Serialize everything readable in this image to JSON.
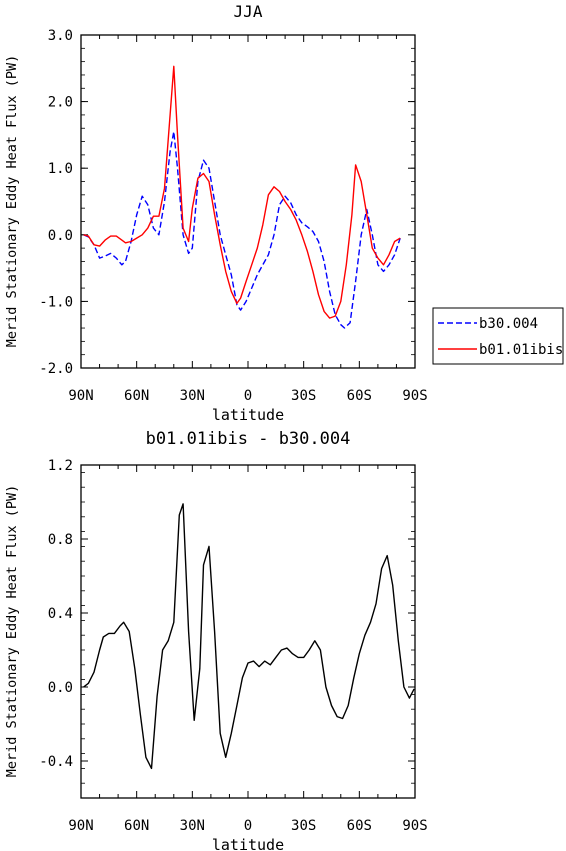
{
  "chart_data": [
    {
      "type": "line",
      "title": "JJA",
      "xlabel": "latitude",
      "ylabel": "Merid Stationary Eddy Heat Flux (PW)",
      "xlim": [
        90,
        -90
      ],
      "ylim": [
        -2.0,
        3.0
      ],
      "xticks": [
        90,
        60,
        30,
        0,
        -30,
        -60,
        -90
      ],
      "xticklabels": [
        "90N",
        "60N",
        "30N",
        "0",
        "30S",
        "60S",
        "90S"
      ],
      "yticks": [
        -2.0,
        -1.0,
        0.0,
        1.0,
        2.0,
        3.0
      ],
      "yticklabels": [
        "-2.0",
        "-1.0",
        "0.0",
        "1.0",
        "2.0",
        "3.0"
      ],
      "legend_position": "right",
      "series": [
        {
          "name": "b30.004",
          "color": "#0000ff",
          "dash": "dashed",
          "points": [
            [
              88.6,
              0.0
            ],
            [
              86,
              -0.03
            ],
            [
              83,
              -0.15
            ],
            [
              80,
              -0.35
            ],
            [
              77,
              -0.32
            ],
            [
              74,
              -0.28
            ],
            [
              71,
              -0.35
            ],
            [
              68,
              -0.45
            ],
            [
              66,
              -0.4
            ],
            [
              63,
              -0.1
            ],
            [
              60,
              0.3
            ],
            [
              57,
              0.58
            ],
            [
              54,
              0.45
            ],
            [
              51,
              0.1
            ],
            [
              48,
              0.0
            ],
            [
              45,
              0.5
            ],
            [
              42,
              1.25
            ],
            [
              40,
              1.55
            ],
            [
              38,
              1.0
            ],
            [
              35,
              0.0
            ],
            [
              32,
              -0.28
            ],
            [
              30,
              -0.2
            ],
            [
              27,
              0.8
            ],
            [
              24,
              1.12
            ],
            [
              21,
              1.0
            ],
            [
              18,
              0.5
            ],
            [
              15,
              0.0
            ],
            [
              12,
              -0.3
            ],
            [
              9,
              -0.6
            ],
            [
              6,
              -1.05
            ],
            [
              4,
              -1.13
            ],
            [
              1,
              -1.0
            ],
            [
              -2,
              -0.8
            ],
            [
              -5,
              -0.6
            ],
            [
              -8,
              -0.45
            ],
            [
              -11,
              -0.3
            ],
            [
              -14,
              0.0
            ],
            [
              -17,
              0.45
            ],
            [
              -20,
              0.58
            ],
            [
              -23,
              0.48
            ],
            [
              -26,
              0.3
            ],
            [
              -29,
              0.18
            ],
            [
              -32,
              0.12
            ],
            [
              -35,
              0.05
            ],
            [
              -38,
              -0.1
            ],
            [
              -41,
              -0.4
            ],
            [
              -44,
              -0.85
            ],
            [
              -47,
              -1.2
            ],
            [
              -50,
              -1.35
            ],
            [
              -52,
              -1.4
            ],
            [
              -55,
              -1.32
            ],
            [
              -58,
              -0.7
            ],
            [
              -61,
              0.0
            ],
            [
              -64,
              0.38
            ],
            [
              -67,
              0.0
            ],
            [
              -70,
              -0.45
            ],
            [
              -73,
              -0.55
            ],
            [
              -76,
              -0.45
            ],
            [
              -79,
              -0.3
            ],
            [
              -82,
              -0.05
            ]
          ]
        },
        {
          "name": "b01.01ibis",
          "color": "#ff0000",
          "dash": "solid",
          "points": [
            [
              88.6,
              0.0
            ],
            [
              86,
              -0.02
            ],
            [
              83,
              -0.15
            ],
            [
              80,
              -0.17
            ],
            [
              77,
              -0.08
            ],
            [
              74,
              -0.02
            ],
            [
              71,
              -0.02
            ],
            [
              68,
              -0.08
            ],
            [
              66,
              -0.12
            ],
            [
              63,
              -0.1
            ],
            [
              60,
              -0.05
            ],
            [
              57,
              0.0
            ],
            [
              54,
              0.1
            ],
            [
              51,
              0.28
            ],
            [
              48,
              0.28
            ],
            [
              45,
              0.7
            ],
            [
              42,
              1.8
            ],
            [
              40,
              2.53
            ],
            [
              38,
              1.5
            ],
            [
              35,
              0.1
            ],
            [
              32,
              -0.1
            ],
            [
              30,
              0.4
            ],
            [
              27,
              0.85
            ],
            [
              24,
              0.92
            ],
            [
              21,
              0.8
            ],
            [
              18,
              0.3
            ],
            [
              15,
              -0.15
            ],
            [
              12,
              -0.55
            ],
            [
              9,
              -0.85
            ],
            [
              6,
              -1.03
            ],
            [
              4,
              -0.95
            ],
            [
              1,
              -0.7
            ],
            [
              -2,
              -0.45
            ],
            [
              -5,
              -0.2
            ],
            [
              -8,
              0.15
            ],
            [
              -11,
              0.6
            ],
            [
              -14,
              0.72
            ],
            [
              -17,
              0.65
            ],
            [
              -20,
              0.5
            ],
            [
              -23,
              0.38
            ],
            [
              -26,
              0.22
            ],
            [
              -29,
              0.0
            ],
            [
              -32,
              -0.25
            ],
            [
              -35,
              -0.55
            ],
            [
              -38,
              -0.9
            ],
            [
              -41,
              -1.15
            ],
            [
              -44,
              -1.25
            ],
            [
              -47,
              -1.22
            ],
            [
              -50,
              -1.0
            ],
            [
              -53,
              -0.45
            ],
            [
              -56,
              0.3
            ],
            [
              -58,
              1.05
            ],
            [
              -61,
              0.8
            ],
            [
              -64,
              0.3
            ],
            [
              -67,
              -0.2
            ],
            [
              -70,
              -0.35
            ],
            [
              -73,
              -0.45
            ],
            [
              -76,
              -0.3
            ],
            [
              -79,
              -0.1
            ],
            [
              -82,
              -0.05
            ]
          ]
        }
      ]
    },
    {
      "type": "line",
      "title": "b01.01ibis - b30.004",
      "xlabel": "latitude",
      "ylabel": "Merid Stationary Eddy Heat Flux (PW)",
      "xlim": [
        90,
        -90
      ],
      "ylim": [
        -0.6,
        1.2
      ],
      "xticks": [
        90,
        60,
        30,
        0,
        -30,
        -60,
        -90
      ],
      "xticklabels": [
        "90N",
        "60N",
        "30N",
        "0",
        "30S",
        "60S",
        "90S"
      ],
      "yticks": [
        -0.4,
        0.0,
        0.4,
        0.8,
        1.2
      ],
      "yticklabels": [
        "-0.4",
        "0.0",
        "0.4",
        "0.8",
        "1.2"
      ],
      "series": [
        {
          "color": "#000000",
          "dash": "solid",
          "points": [
            [
              88.6,
              0.0
            ],
            [
              86,
              0.02
            ],
            [
              83,
              0.08
            ],
            [
              80,
              0.2
            ],
            [
              78,
              0.27
            ],
            [
              75,
              0.29
            ],
            [
              72,
              0.29
            ],
            [
              69,
              0.33
            ],
            [
              67,
              0.35
            ],
            [
              64,
              0.3
            ],
            [
              61,
              0.1
            ],
            [
              58,
              -0.15
            ],
            [
              55,
              -0.38
            ],
            [
              52,
              -0.44
            ],
            [
              49,
              -0.05
            ],
            [
              46,
              0.2
            ],
            [
              43,
              0.25
            ],
            [
              40,
              0.35
            ],
            [
              37,
              0.93
            ],
            [
              35,
              0.99
            ],
            [
              32,
              0.3
            ],
            [
              29,
              -0.18
            ],
            [
              26,
              0.1
            ],
            [
              24,
              0.66
            ],
            [
              21,
              0.76
            ],
            [
              18,
              0.3
            ],
            [
              15,
              -0.25
            ],
            [
              12,
              -0.38
            ],
            [
              9,
              -0.25
            ],
            [
              6,
              -0.1
            ],
            [
              3,
              0.05
            ],
            [
              0,
              0.13
            ],
            [
              -3,
              0.14
            ],
            [
              -6,
              0.11
            ],
            [
              -9,
              0.14
            ],
            [
              -12,
              0.12
            ],
            [
              -15,
              0.16
            ],
            [
              -18,
              0.2
            ],
            [
              -21,
              0.21
            ],
            [
              -24,
              0.18
            ],
            [
              -27,
              0.16
            ],
            [
              -30,
              0.16
            ],
            [
              -33,
              0.2
            ],
            [
              -36,
              0.25
            ],
            [
              -39,
              0.2
            ],
            [
              -42,
              0.0
            ],
            [
              -45,
              -0.1
            ],
            [
              -48,
              -0.16
            ],
            [
              -51,
              -0.17
            ],
            [
              -54,
              -0.1
            ],
            [
              -57,
              0.05
            ],
            [
              -60,
              0.18
            ],
            [
              -63,
              0.28
            ],
            [
              -66,
              0.35
            ],
            [
              -69,
              0.45
            ],
            [
              -72,
              0.64
            ],
            [
              -75,
              0.71
            ],
            [
              -78,
              0.55
            ],
            [
              -81,
              0.25
            ],
            [
              -84,
              0.0
            ],
            [
              -87,
              -0.06
            ],
            [
              -89.5,
              -0.01
            ]
          ]
        }
      ]
    }
  ]
}
